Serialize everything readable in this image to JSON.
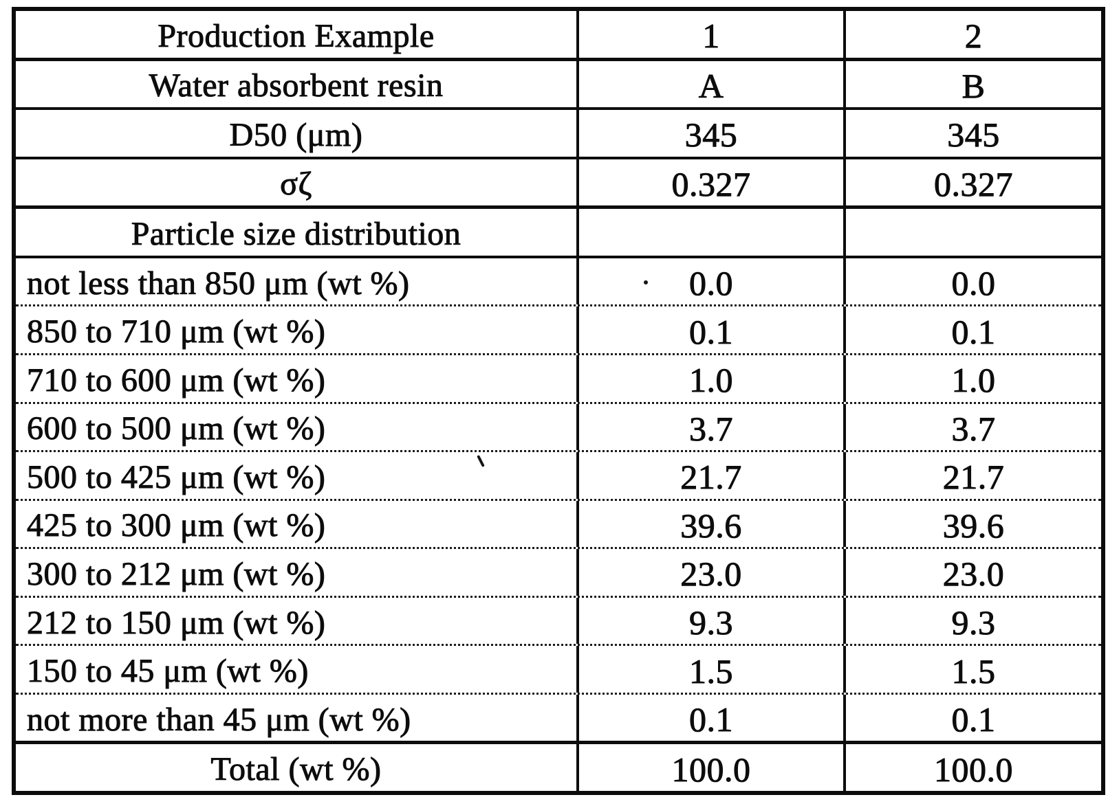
{
  "page": {
    "background_color": "#ffffff",
    "ink_color": "#0d0d0d"
  },
  "table": {
    "rows": [
      {
        "label": "Production Example",
        "v1": "1",
        "v2": "2"
      },
      {
        "label": "Water absorbent resin",
        "v1": "A",
        "v2": "B"
      },
      {
        "label": "D50 (μm)",
        "v1": "345",
        "v2": "345"
      },
      {
        "label": "σζ",
        "v1": "0.327",
        "v2": "0.327"
      },
      {
        "label": "Particle size distribution",
        "v1": "",
        "v2": ""
      },
      {
        "label": "not less than 850 μm (wt %)",
        "v1": "0.0",
        "v2": "0.0"
      },
      {
        "label": "850 to 710 μm (wt %)",
        "v1": "0.1",
        "v2": "0.1"
      },
      {
        "label": "710 to 600 μm (wt %)",
        "v1": "1.0",
        "v2": "1.0"
      },
      {
        "label": "600 to 500 μm (wt %)",
        "v1": "3.7",
        "v2": "3.7"
      },
      {
        "label": "500 to 425 μm (wt %)",
        "v1": "21.7",
        "v2": "21.7"
      },
      {
        "label": "425 to 300 μm (wt %)",
        "v1": "39.6",
        "v2": "39.6"
      },
      {
        "label": "300 to 212 μm (wt %)",
        "v1": "23.0",
        "v2": "23.0"
      },
      {
        "label": "212 to 150 μm (wt %)",
        "v1": "9.3",
        "v2": "9.3"
      },
      {
        "label": "150 to 45 μm (wt %)",
        "v1": "1.5",
        "v2": "1.5"
      },
      {
        "label": "not more than 45 μm (wt %)",
        "v1": "0.1",
        "v2": "0.1"
      },
      {
        "label": "Total (wt %)",
        "v1": "100.0",
        "v2": "100.0"
      }
    ]
  }
}
